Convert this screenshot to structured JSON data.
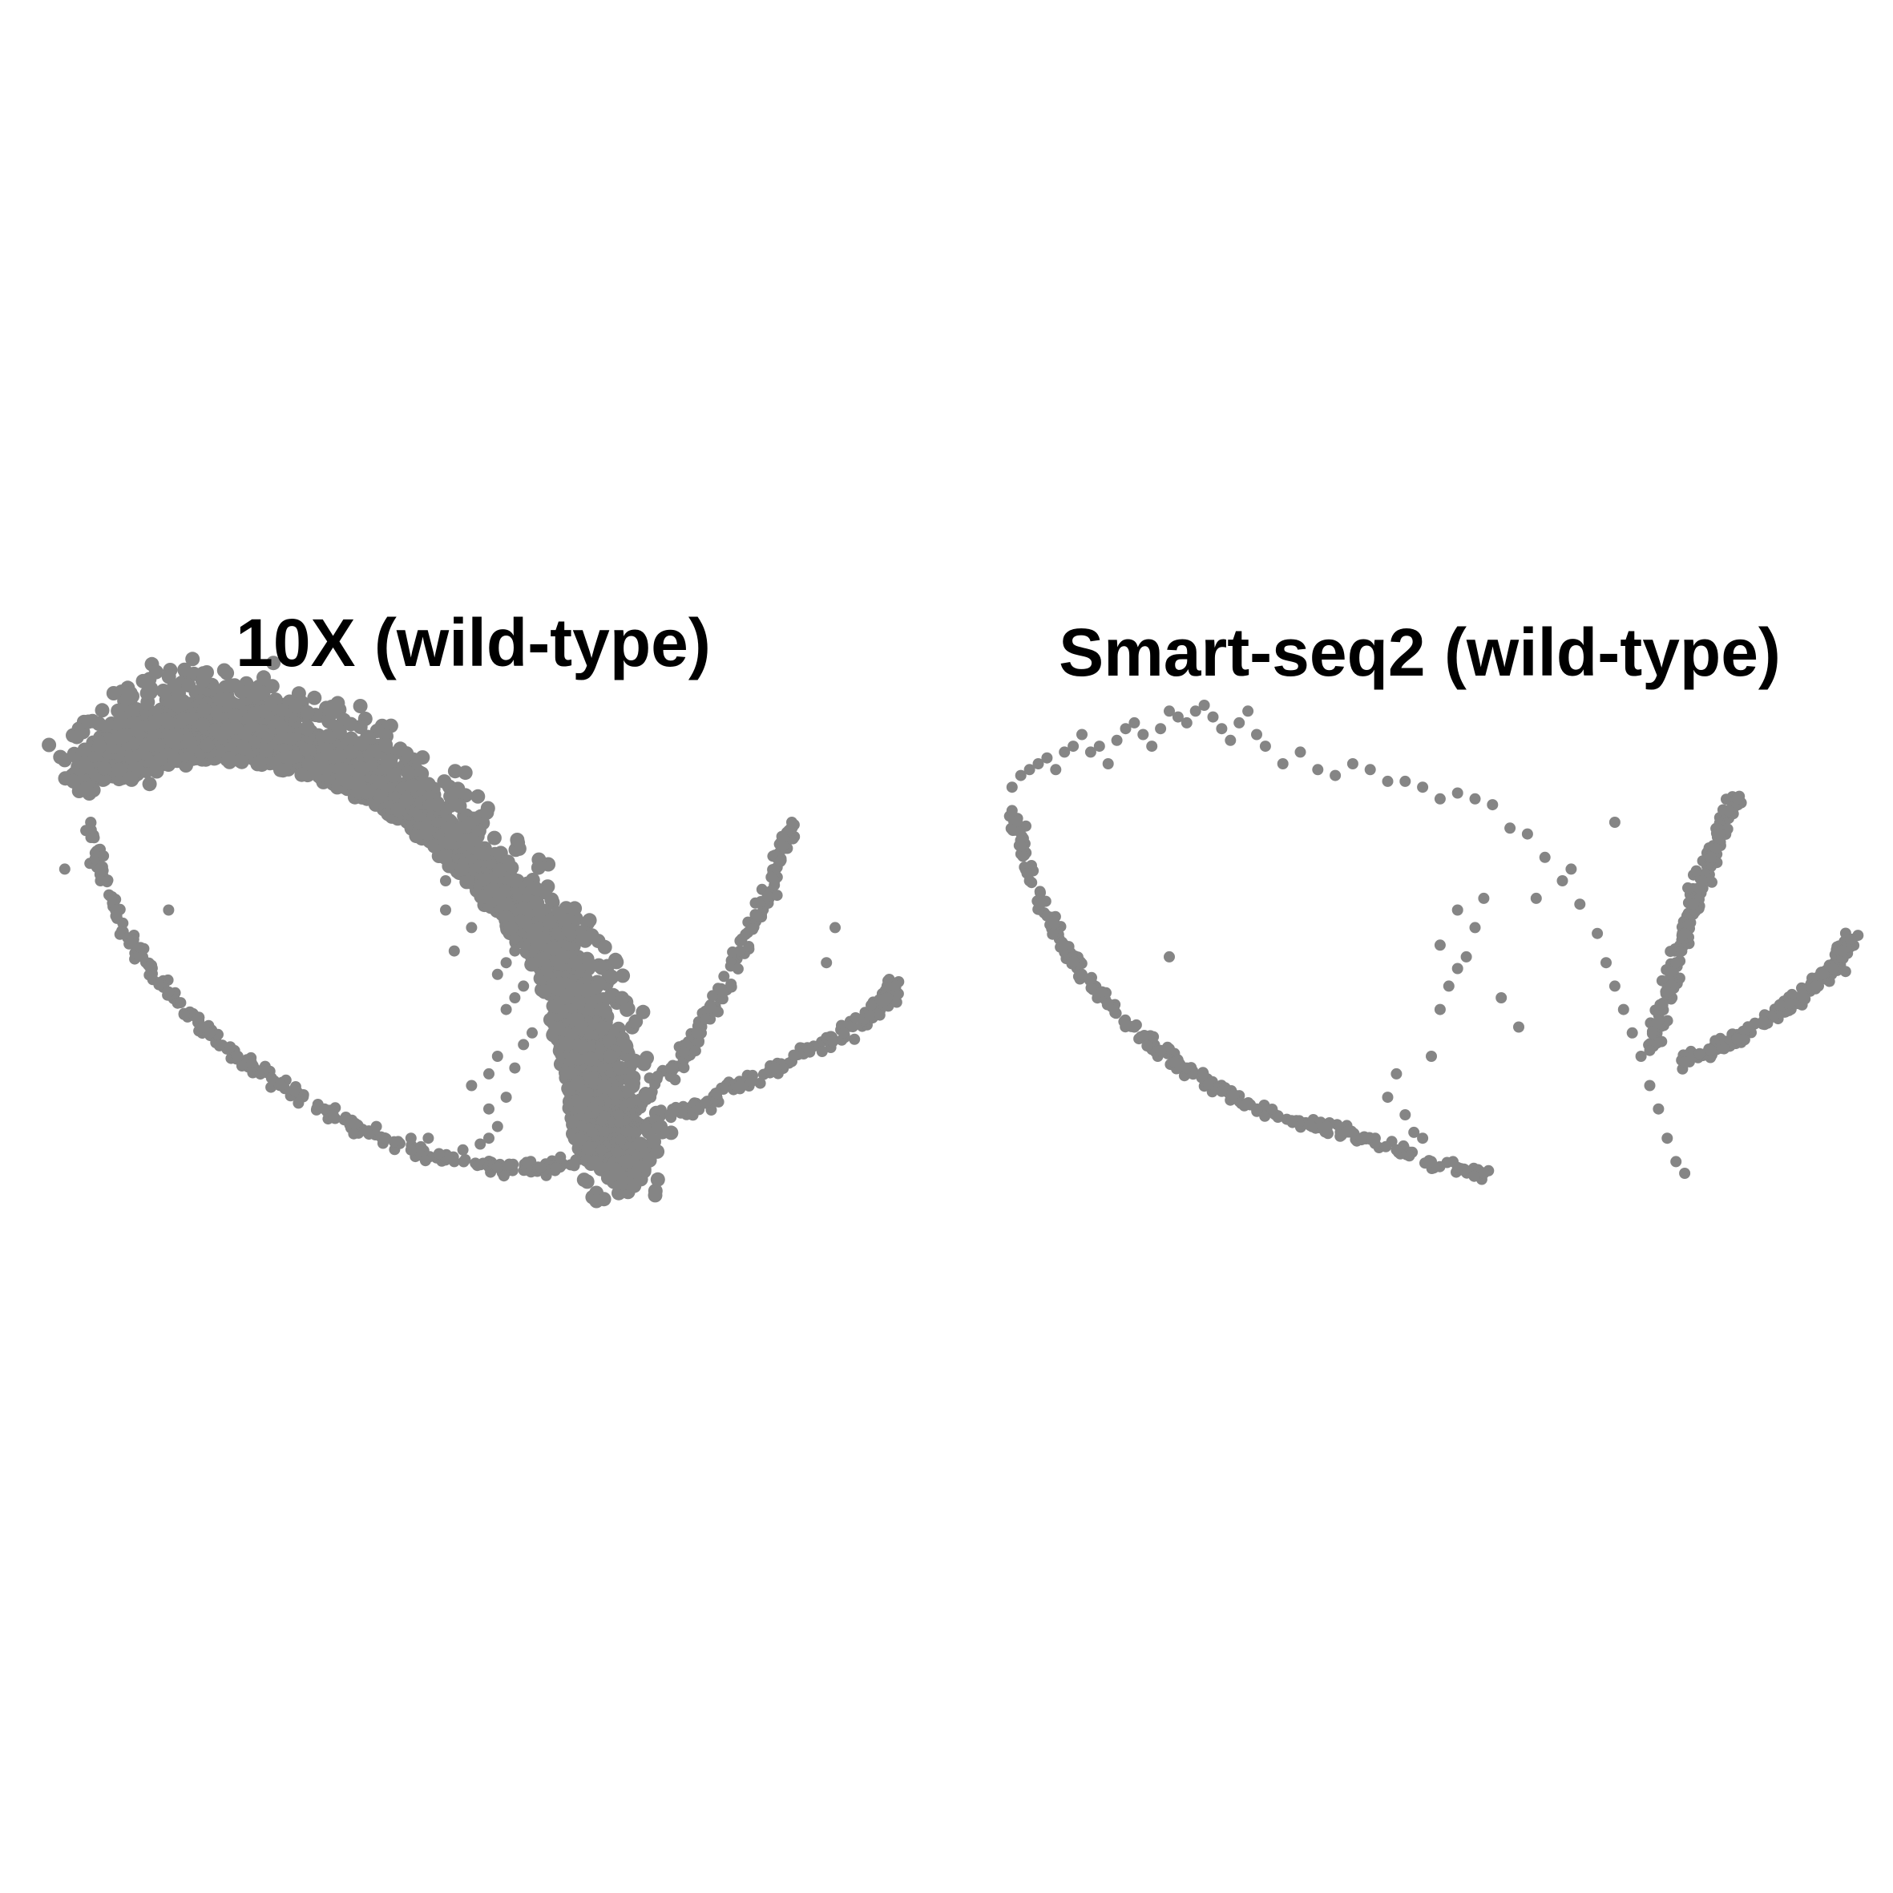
{
  "point_color": "#858585",
  "chart_data": [
    {
      "type": "scatter",
      "title": "10X (wild-type)",
      "xlabel": "",
      "ylabel": "",
      "axes_visible": false,
      "grid": false,
      "xlim": [
        0,
        100
      ],
      "ylim": [
        0,
        100
      ],
      "series": [
        {
          "shape": "dense-band",
          "points": [
            [
              2,
              87
            ],
            [
              5,
              93
            ],
            [
              9,
              97
            ],
            [
              14,
              100
            ],
            [
              19,
              101
            ],
            [
              24,
              99
            ],
            [
              29,
              96
            ],
            [
              34,
              92
            ],
            [
              39,
              88
            ],
            [
              44,
              83
            ],
            [
              48,
              77
            ],
            [
              53,
              70
            ],
            [
              57,
              63
            ],
            [
              60,
              56
            ],
            [
              63,
              48
            ],
            [
              64,
              40
            ],
            [
              65,
              33
            ],
            [
              66,
              27
            ],
            [
              66,
              22
            ],
            [
              65,
              20
            ]
          ],
          "inner": [
            [
              8,
              88
            ],
            [
              13,
              90
            ],
            [
              18,
              91
            ],
            [
              23,
              90
            ],
            [
              28,
              89
            ],
            [
              33,
              86
            ],
            [
              38,
              82
            ],
            [
              43,
              77
            ],
            [
              47,
              71
            ],
            [
              51,
              64
            ],
            [
              55,
              57
            ],
            [
              57,
              49
            ],
            [
              58,
              41
            ],
            [
              59,
              34
            ],
            [
              60,
              28
            ],
            [
              61,
              23
            ]
          ]
        },
        {
          "shape": "thin-arc",
          "points": [
            [
              4,
              80
            ],
            [
              5,
              72
            ],
            [
              7,
              64
            ],
            [
              10,
              57
            ],
            [
              13,
              51
            ],
            [
              17,
              45
            ],
            [
              21,
              40
            ],
            [
              26,
              35
            ],
            [
              31,
              31
            ],
            [
              36,
              27
            ],
            [
              41,
              24
            ],
            [
              46,
              22
            ],
            [
              51,
              21
            ],
            [
              56,
              21
            ],
            [
              60,
              22
            ]
          ]
        },
        {
          "shape": "branch",
          "points": [
            [
              62,
              27
            ],
            [
              65,
              30
            ],
            [
              68,
              33
            ],
            [
              71,
              38
            ],
            [
              74,
              44
            ],
            [
              77,
              51
            ],
            [
              79,
              58
            ],
            [
              81,
              64
            ],
            [
              83,
              70
            ],
            [
              84,
              76
            ],
            [
              85,
              80
            ]
          ]
        },
        {
          "shape": "branch",
          "points": [
            [
              63,
              24
            ],
            [
              67,
              27
            ],
            [
              71,
              30
            ],
            [
              75,
              32
            ],
            [
              79,
              35
            ],
            [
              83,
              38
            ],
            [
              87,
              41
            ],
            [
              91,
              44
            ],
            [
              94,
              47
            ],
            [
              96,
              50
            ],
            [
              97,
              52
            ]
          ]
        },
        {
          "shape": "scattered",
          "points": [
            [
              1,
              72
            ],
            [
              13,
              65
            ],
            [
              28,
              32
            ],
            [
              32,
              30
            ],
            [
              37,
              28
            ],
            [
              38,
              26
            ],
            [
              41,
              26
            ],
            [
              43,
              26
            ],
            [
              47,
              24
            ],
            [
              49,
              25
            ],
            [
              50,
              26
            ],
            [
              51,
              28
            ],
            [
              52,
              33
            ],
            [
              53,
              38
            ],
            [
              54,
              42
            ],
            [
              55,
              44
            ],
            [
              50,
              37
            ],
            [
              51,
              40
            ],
            [
              52,
              48
            ],
            [
              53,
              50
            ],
            [
              54,
              52
            ],
            [
              51,
              54
            ],
            [
              52,
              56
            ],
            [
              53,
              58
            ],
            [
              48,
              62
            ],
            [
              46,
              58
            ],
            [
              45,
              65
            ],
            [
              44,
              80
            ],
            [
              43,
              83
            ],
            [
              45,
              70
            ],
            [
              47,
              73
            ],
            [
              50,
              31
            ],
            [
              48,
              35
            ],
            [
              90,
              62
            ],
            [
              89,
              56
            ],
            [
              53,
              60
            ]
          ]
        }
      ]
    },
    {
      "type": "scatter",
      "title": "Smart-seq2 (wild-type)",
      "xlabel": "",
      "ylabel": "",
      "axes_visible": false,
      "grid": false,
      "xlim": [
        0,
        100
      ],
      "ylim": [
        0,
        100
      ],
      "series": [
        {
          "shape": "scattered",
          "points": [
            [
              2,
              86
            ],
            [
              3,
              88
            ],
            [
              4,
              89
            ],
            [
              5,
              90
            ],
            [
              6,
              91
            ],
            [
              7,
              89
            ],
            [
              8,
              92
            ],
            [
              9,
              93
            ],
            [
              10,
              95
            ],
            [
              11,
              92
            ],
            [
              12,
              93
            ],
            [
              13,
              90
            ],
            [
              14,
              94
            ],
            [
              15,
              96
            ],
            [
              16,
              97
            ],
            [
              17,
              95
            ],
            [
              18,
              93
            ],
            [
              19,
              96
            ],
            [
              20,
              99
            ],
            [
              21,
              98
            ],
            [
              22,
              97
            ],
            [
              23,
              99
            ],
            [
              24,
              100
            ],
            [
              25,
              98
            ],
            [
              26,
              96
            ],
            [
              27,
              94
            ],
            [
              28,
              97
            ],
            [
              29,
              99
            ],
            [
              30,
              95
            ],
            [
              31,
              93
            ],
            [
              33,
              90
            ],
            [
              35,
              92
            ],
            [
              37,
              89
            ],
            [
              39,
              88
            ],
            [
              41,
              90
            ],
            [
              43,
              89
            ],
            [
              45,
              87
            ],
            [
              47,
              87
            ],
            [
              49,
              86
            ],
            [
              51,
              84
            ],
            [
              53,
              85
            ],
            [
              55,
              84
            ],
            [
              57,
              83
            ],
            [
              59,
              79
            ],
            [
              61,
              78
            ],
            [
              63,
              74
            ],
            [
              65,
              70
            ],
            [
              67,
              66
            ],
            [
              69,
              61
            ],
            [
              70,
              56
            ],
            [
              71,
              52
            ],
            [
              72,
              48
            ],
            [
              73,
              44
            ],
            [
              74,
              40
            ],
            [
              75,
              35
            ],
            [
              76,
              31
            ],
            [
              77,
              26
            ],
            [
              78,
              22
            ],
            [
              79,
              20
            ]
          ]
        },
        {
          "shape": "thin-arc",
          "points": [
            [
              2,
              82
            ],
            [
              3,
              76
            ],
            [
              4,
              70
            ],
            [
              6,
              64
            ],
            [
              8,
              59
            ],
            [
              10,
              54
            ],
            [
              13,
              49
            ],
            [
              16,
              45
            ],
            [
              19,
              41
            ],
            [
              22,
              38
            ],
            [
              26,
              34
            ],
            [
              30,
              31
            ],
            [
              34,
              29
            ],
            [
              38,
              28
            ],
            [
              42,
              26
            ],
            [
              46,
              24
            ],
            [
              50,
              22
            ],
            [
              53,
              21
            ],
            [
              56,
              20
            ]
          ]
        },
        {
          "shape": "scattered",
          "points": [
            [
              45,
              33
            ],
            [
              46,
              37
            ],
            [
              47,
              30
            ],
            [
              48,
              27
            ],
            [
              49,
              26
            ],
            [
              50,
              40
            ],
            [
              51,
              48
            ],
            [
              52,
              52
            ],
            [
              53,
              55
            ],
            [
              54,
              57
            ],
            [
              55,
              62
            ],
            [
              56,
              67
            ],
            [
              51,
              59
            ],
            [
              53,
              65
            ],
            [
              20,
              57
            ],
            [
              71,
              80
            ],
            [
              66,
              72
            ],
            [
              62,
              67
            ],
            [
              58,
              50
            ],
            [
              60,
              45
            ],
            [
              80,
              71
            ],
            [
              82,
              40
            ],
            [
              84,
              42
            ]
          ]
        },
        {
          "shape": "branch",
          "points": [
            [
              75,
              41
            ],
            [
              76,
              46
            ],
            [
              77,
              51
            ],
            [
              78,
              56
            ],
            [
              79,
              61
            ],
            [
              80,
              66
            ],
            [
              81,
              70
            ],
            [
              82,
              74
            ],
            [
              83,
              78
            ],
            [
              84,
              82
            ],
            [
              85,
              84
            ]
          ]
        },
        {
          "shape": "branch",
          "points": [
            [
              79,
              39
            ],
            [
              82,
              41
            ],
            [
              85,
              43
            ],
            [
              88,
              46
            ],
            [
              91,
              49
            ],
            [
              94,
              52
            ],
            [
              96,
              55
            ],
            [
              97,
              58
            ],
            [
              98,
              60
            ]
          ]
        }
      ]
    }
  ]
}
